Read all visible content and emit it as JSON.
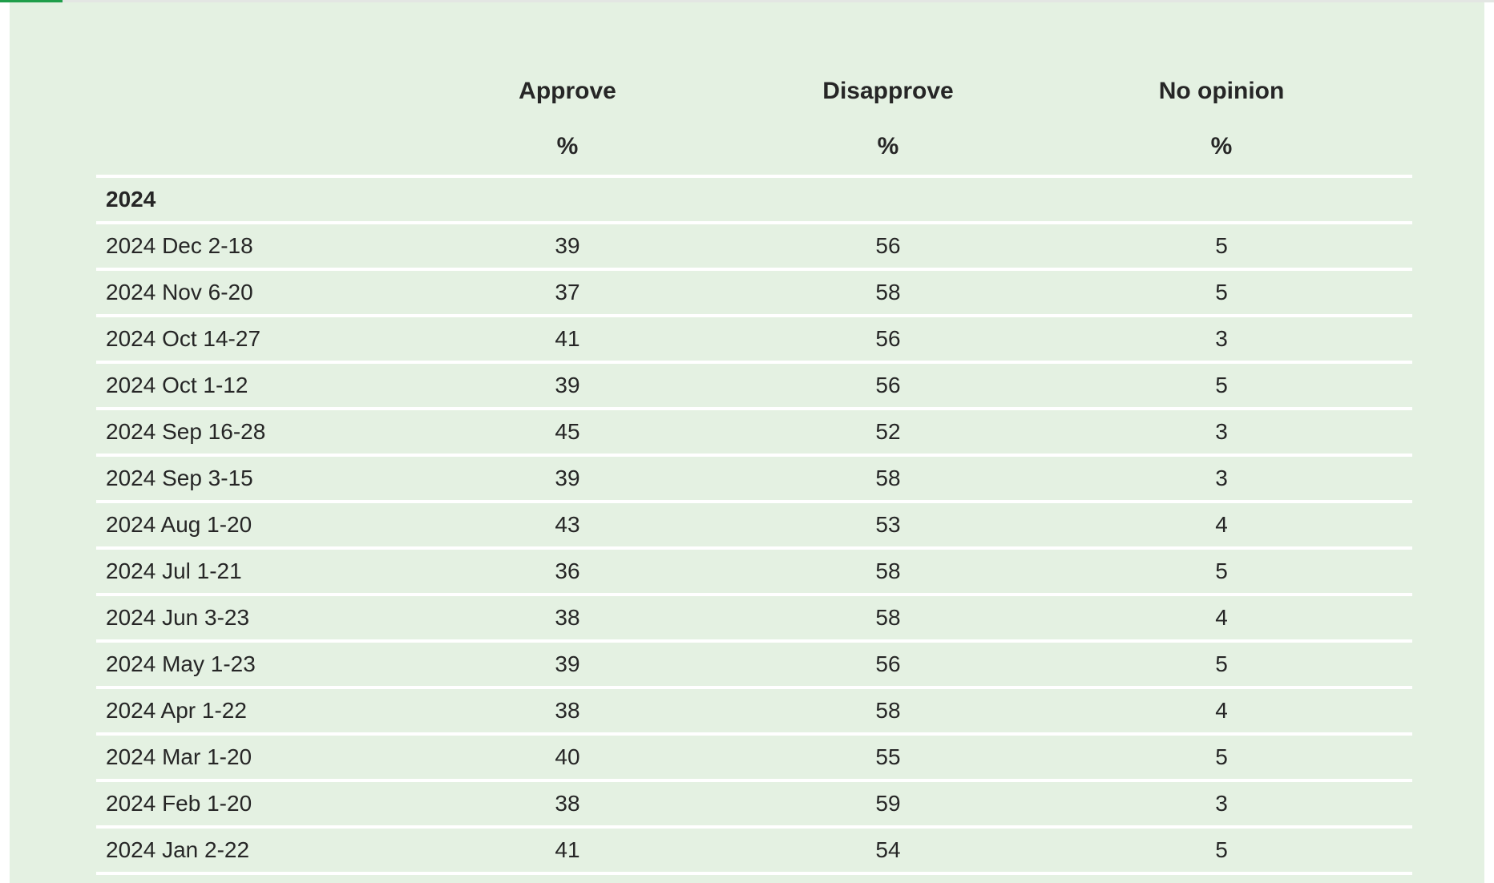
{
  "table": {
    "headers": {
      "label": "",
      "approve": "Approve",
      "disapprove": "Disapprove",
      "no_opinion": "No opinion"
    },
    "units": {
      "approve": "%",
      "disapprove": "%",
      "no_opinion": "%"
    },
    "group": "2024",
    "rows": [
      {
        "date": "2024 Dec 2-18",
        "approve": "39",
        "disapprove": "56",
        "no_opinion": "5"
      },
      {
        "date": "2024 Nov 6-20",
        "approve": "37",
        "disapprove": "58",
        "no_opinion": "5"
      },
      {
        "date": "2024 Oct 14-27",
        "approve": "41",
        "disapprove": "56",
        "no_opinion": "3"
      },
      {
        "date": "2024 Oct 1-12",
        "approve": "39",
        "disapprove": "56",
        "no_opinion": "5"
      },
      {
        "date": "2024 Sep 16-28",
        "approve": "45",
        "disapprove": "52",
        "no_opinion": "3"
      },
      {
        "date": "2024 Sep 3-15",
        "approve": "39",
        "disapprove": "58",
        "no_opinion": "3"
      },
      {
        "date": "2024 Aug 1-20",
        "approve": "43",
        "disapprove": "53",
        "no_opinion": "4"
      },
      {
        "date": "2024 Jul 1-21",
        "approve": "36",
        "disapprove": "58",
        "no_opinion": "5"
      },
      {
        "date": "2024 Jun 3-23",
        "approve": "38",
        "disapprove": "58",
        "no_opinion": "4"
      },
      {
        "date": "2024 May 1-23",
        "approve": "39",
        "disapprove": "56",
        "no_opinion": "5"
      },
      {
        "date": "2024 Apr 1-22",
        "approve": "38",
        "disapprove": "58",
        "no_opinion": "4"
      },
      {
        "date": "2024 Mar 1-20",
        "approve": "40",
        "disapprove": "55",
        "no_opinion": "5"
      },
      {
        "date": "2024 Feb 1-20",
        "approve": "38",
        "disapprove": "59",
        "no_opinion": "3"
      },
      {
        "date": "2024 Jan 2-22",
        "approve": "41",
        "disapprove": "54",
        "no_opinion": "5"
      }
    ]
  },
  "colors": {
    "panel_background": "#e4f1e2",
    "row_divider": "#ffffff",
    "accent": "#1f9e4a",
    "text": "#262626"
  }
}
